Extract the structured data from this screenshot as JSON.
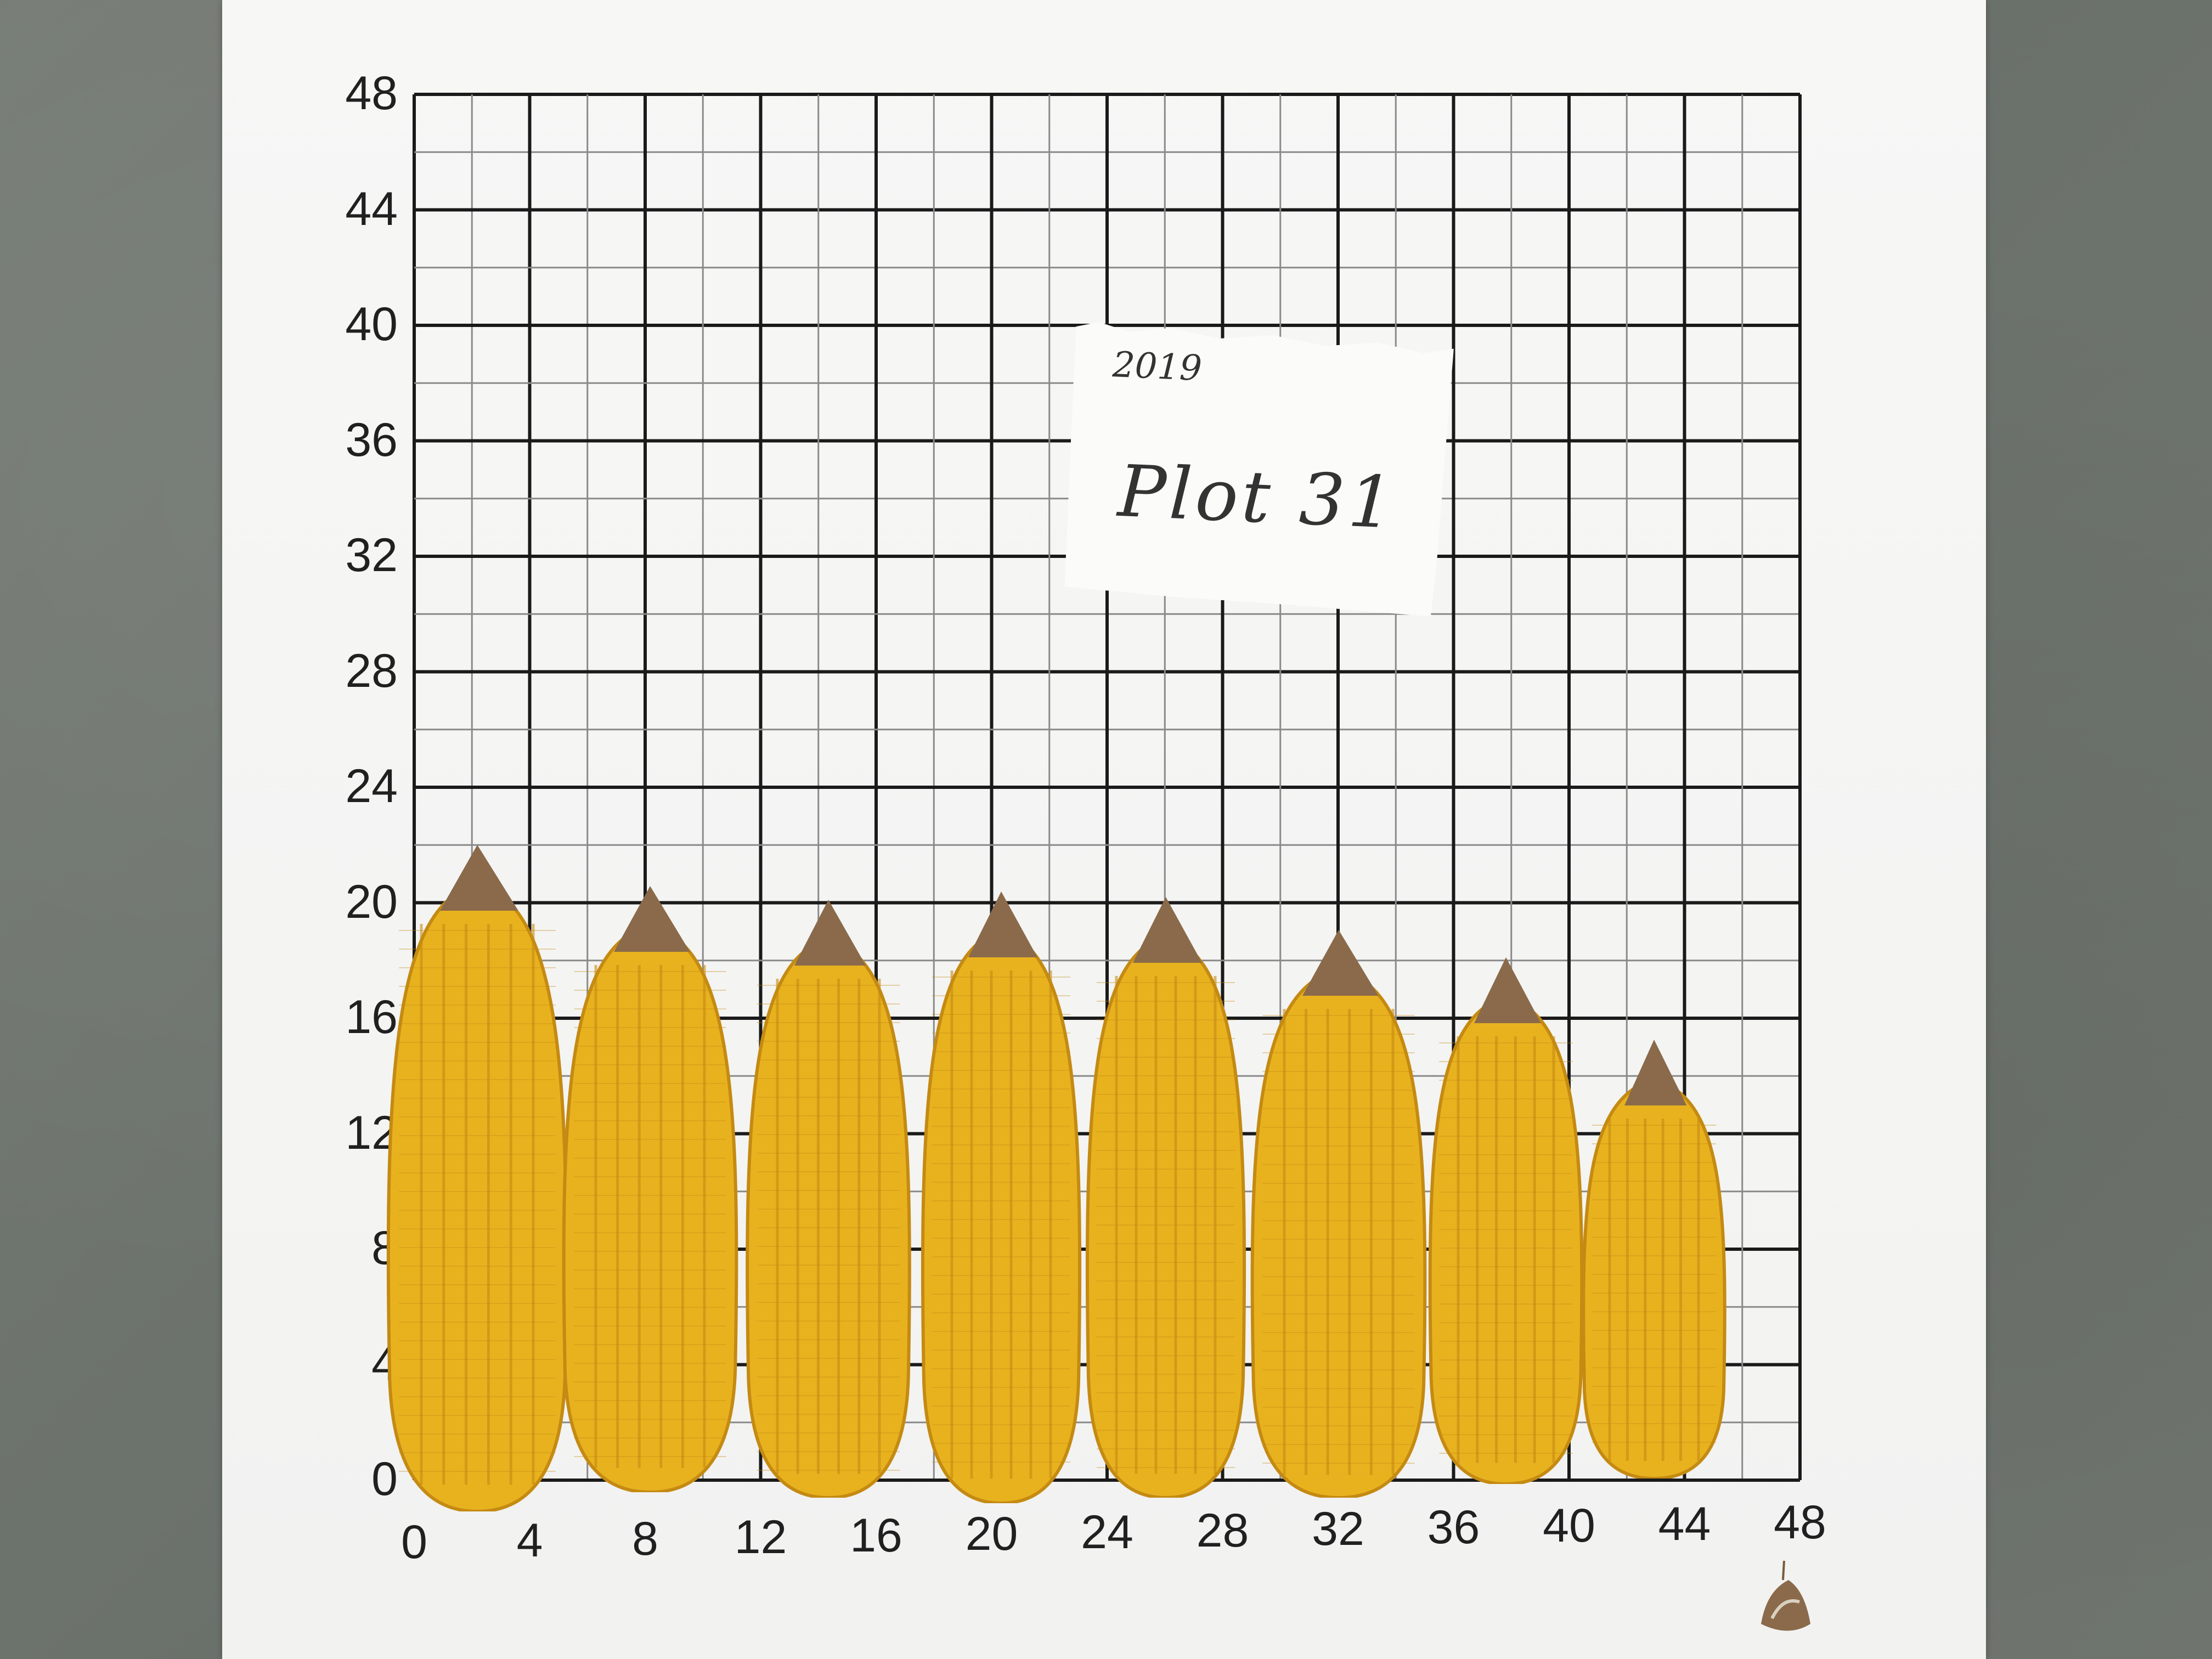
{
  "note": {
    "year": "2019",
    "label": "Plot 31"
  },
  "grid": {
    "y_ticks": [
      "48",
      "44",
      "40",
      "36",
      "32",
      "28",
      "24",
      "20",
      "16",
      "12",
      "8",
      "4",
      "0"
    ],
    "x_ticks": [
      "0",
      "4",
      "8",
      "12",
      "16",
      "20",
      "24",
      "28",
      "32",
      "36",
      "40",
      "44",
      "48"
    ]
  },
  "colors": {
    "floor": "#70766e",
    "board": "#f4f4f3",
    "grid_major": "#1a1a1a",
    "grid_minor": "#8a8a8a",
    "kernel": "#e8b21f",
    "kernel_shadow": "#c48a12",
    "husk_tip": "#8a6a4a"
  },
  "objects": {
    "corn_ear_count": 8,
    "icons": [
      "corn-ear",
      "paper-note",
      "husk-debris"
    ]
  }
}
